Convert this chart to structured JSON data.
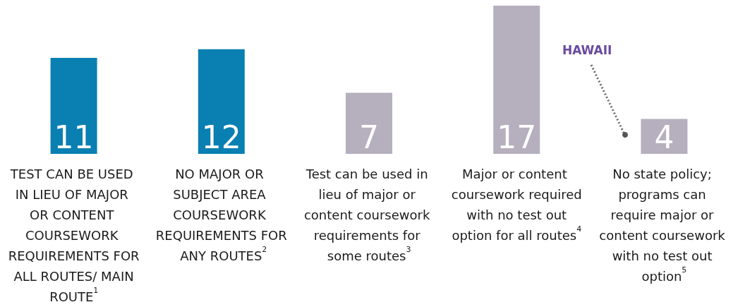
{
  "chart_data": {
    "type": "bar",
    "categories": [
      "TEST CAN BE USED IN LIEU OF MAJOR OR CONTENT COURSEWORK REQUIREMENTS FOR ALL ROUTES/ MAIN ROUTE$^{1}$",
      "NO MAJOR OR SUBJECT AREA COURSEWORK REQUIREMENTS FOR ANY ROUTES$^{2}$",
      "Test can be used in lieu of major or content coursework requirements for some routes$^{3}$",
      "Major or content coursework required with no test out option for all routes$^{4}$",
      "No state policy; programs can require major or content coursework with no test out option$^{5}$"
    ],
    "values": [
      11,
      12,
      7,
      17,
      4
    ],
    "colors": [
      "#0a7fb1",
      "#0a7fb1",
      "#b5afbe",
      "#b5afbe",
      "#b5afbe"
    ],
    "data_labels": true,
    "annotations": [
      "HAWAII"
    ]
  }
}
